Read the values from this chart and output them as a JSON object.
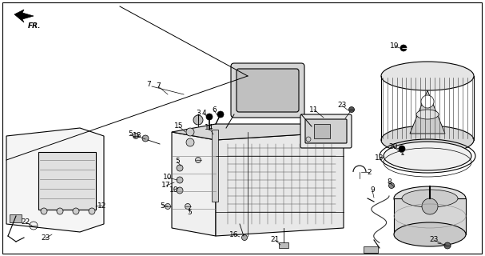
{
  "bg_color": "#ffffff",
  "line_color": "#000000",
  "figsize": [
    6.07,
    3.2
  ],
  "dpi": 100
}
